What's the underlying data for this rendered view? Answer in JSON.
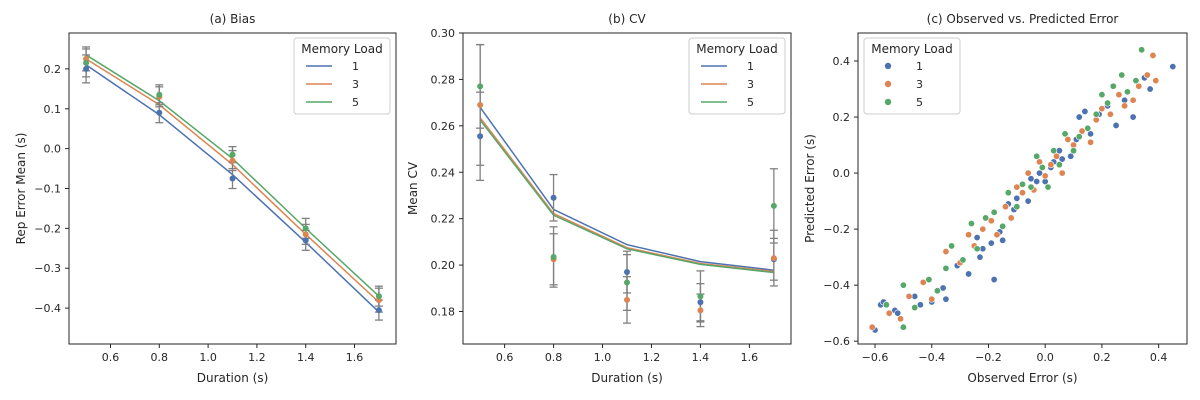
{
  "chart_data": [
    {
      "type": "line",
      "title": "(a) Bias",
      "xlabel": "Duration (s)",
      "ylabel": "Rep Error Mean (s)",
      "xlim": [
        0.43,
        1.77
      ],
      "ylim": [
        -0.49,
        0.29
      ],
      "xticks": [
        0.6,
        0.8,
        1.0,
        1.2,
        1.4,
        1.6
      ],
      "xtick_labels": [
        "0.6",
        "0.8",
        "1.0",
        "1.2",
        "1.4",
        "1.6"
      ],
      "yticks": [
        -0.4,
        -0.3,
        -0.2,
        -0.1,
        0.0,
        0.1,
        0.2
      ],
      "ytick_labels": [
        "−0.4",
        "−0.3",
        "−0.2",
        "−0.1",
        "0.0",
        "0.1",
        "0.2"
      ],
      "x": [
        0.5,
        0.8,
        1.1,
        1.4,
        1.7
      ],
      "legend": {
        "title": "Memory Load",
        "position": "top-right",
        "kind": "line"
      },
      "series": [
        {
          "name": "1",
          "color": "#4c72b0",
          "fit": [
            0.21,
            0.085,
            -0.065,
            -0.235,
            -0.41
          ],
          "points": [
            0.2,
            0.09,
            -0.075,
            -0.23,
            -0.405
          ],
          "err": [
            0.035,
            0.025,
            0.025,
            0.025,
            0.025
          ]
        },
        {
          "name": "3",
          "color": "#dd8452",
          "fit": [
            0.225,
            0.11,
            -0.04,
            -0.215,
            -0.385
          ],
          "points": [
            0.225,
            0.13,
            -0.03,
            -0.215,
            -0.38
          ],
          "err": [
            0.03,
            0.025,
            0.025,
            0.025,
            0.03
          ]
        },
        {
          "name": "5",
          "color": "#55a868",
          "fit": [
            0.235,
            0.12,
            -0.025,
            -0.2,
            -0.37
          ],
          "points": [
            0.215,
            0.135,
            -0.015,
            -0.2,
            -0.37
          ],
          "err": [
            0.035,
            0.025,
            0.02,
            0.025,
            0.025
          ]
        }
      ]
    },
    {
      "type": "line",
      "title": "(b) CV",
      "xlabel": "Duration (s)",
      "ylabel": "Mean CV",
      "xlim": [
        0.43,
        1.77
      ],
      "ylim": [
        0.166,
        0.3
      ],
      "xticks": [
        0.6,
        0.8,
        1.0,
        1.2,
        1.4,
        1.6
      ],
      "xtick_labels": [
        "0.6",
        "0.8",
        "1.0",
        "1.2",
        "1.4",
        "1.6"
      ],
      "yticks": [
        0.18,
        0.2,
        0.22,
        0.24,
        0.26,
        0.28,
        0.3
      ],
      "ytick_labels": [
        "0.18",
        "0.20",
        "0.22",
        "0.24",
        "0.26",
        "0.28",
        "0.30"
      ],
      "x": [
        0.5,
        0.8,
        1.1,
        1.4,
        1.7
      ],
      "legend": {
        "title": "Memory Load",
        "position": "top-right",
        "kind": "line"
      },
      "series": [
        {
          "name": "1",
          "color": "#4c72b0",
          "fit": [
            0.268,
            0.224,
            0.2088,
            0.2015,
            0.1978
          ],
          "points": [
            0.2555,
            0.229,
            0.197,
            0.184,
            0.2025
          ],
          "err": [
            0.019,
            0.01,
            0.009,
            0.008,
            0.009
          ]
        },
        {
          "name": "3",
          "color": "#dd8452",
          "fit": [
            0.2635,
            0.2222,
            0.2075,
            0.2007,
            0.1972
          ],
          "points": [
            0.269,
            0.2025,
            0.185,
            0.1805,
            0.203
          ],
          "err": [
            0.026,
            0.011,
            0.01,
            0.007,
            0.012
          ]
        },
        {
          "name": "5",
          "color": "#55a868",
          "fit": [
            0.2625,
            0.2215,
            0.207,
            0.2003,
            0.1968
          ],
          "points": [
            0.277,
            0.2035,
            0.1925,
            0.1865,
            0.2255
          ],
          "err": [
            0.018,
            0.013,
            0.012,
            0.011,
            0.016
          ]
        }
      ]
    },
    {
      "type": "scatter",
      "title": "(c) Observed vs. Predicted Error",
      "xlabel": "Observed Error (s)",
      "ylabel": "Predicted Error (s)",
      "xlim": [
        -0.66,
        0.5
      ],
      "ylim": [
        -0.61,
        0.5
      ],
      "xticks": [
        -0.6,
        -0.4,
        -0.2,
        0.0,
        0.2,
        0.4
      ],
      "xtick_labels": [
        "−0.6",
        "−0.4",
        "−0.2",
        "0.0",
        "0.2",
        "0.4"
      ],
      "yticks": [
        -0.6,
        -0.4,
        -0.2,
        0.0,
        0.2,
        0.4
      ],
      "ytick_labels": [
        "−0.6",
        "−0.4",
        "−0.2",
        "0.0",
        "0.2",
        "0.4"
      ],
      "legend": {
        "title": "Memory Load",
        "position": "top-left",
        "kind": "marker"
      },
      "series": [
        {
          "name": "1",
          "color": "#4c72b0",
          "points": [
            [
              -0.6,
              -0.56
            ],
            [
              -0.58,
              -0.47
            ],
            [
              -0.57,
              -0.46
            ],
            [
              -0.53,
              -0.49
            ],
            [
              -0.52,
              -0.5
            ],
            [
              -0.46,
              -0.44
            ],
            [
              -0.44,
              -0.47
            ],
            [
              -0.4,
              -0.46
            ],
            [
              -0.36,
              -0.41
            ],
            [
              -0.35,
              -0.45
            ],
            [
              -0.31,
              -0.33
            ],
            [
              -0.27,
              -0.36
            ],
            [
              -0.24,
              -0.23
            ],
            [
              -0.23,
              -0.3
            ],
            [
              -0.22,
              -0.27
            ],
            [
              -0.19,
              -0.25
            ],
            [
              -0.18,
              -0.38
            ],
            [
              -0.16,
              -0.21
            ],
            [
              -0.15,
              -0.24
            ],
            [
              -0.13,
              -0.11
            ],
            [
              -0.11,
              -0.13
            ],
            [
              -0.1,
              -0.09
            ],
            [
              -0.08,
              -0.07
            ],
            [
              -0.06,
              -0.1
            ],
            [
              -0.05,
              -0.02
            ],
            [
              -0.03,
              -0.03
            ],
            [
              -0.02,
              0.0
            ],
            [
              0.0,
              -0.03
            ],
            [
              0.02,
              0.02
            ],
            [
              0.03,
              0.04
            ],
            [
              0.05,
              0.08
            ],
            [
              0.06,
              0.05
            ],
            [
              0.09,
              0.06
            ],
            [
              0.11,
              0.12
            ],
            [
              0.12,
              0.2
            ],
            [
              0.14,
              0.22
            ],
            [
              0.16,
              0.14
            ],
            [
              0.19,
              0.21
            ],
            [
              0.22,
              0.24
            ],
            [
              0.25,
              0.17
            ],
            [
              0.28,
              0.26
            ],
            [
              0.31,
              0.2
            ],
            [
              0.35,
              0.34
            ],
            [
              0.37,
              0.3
            ],
            [
              0.45,
              0.38
            ]
          ]
        },
        {
          "name": "3",
          "color": "#dd8452",
          "points": [
            [
              -0.61,
              -0.55
            ],
            [
              -0.55,
              -0.5
            ],
            [
              -0.51,
              -0.52
            ],
            [
              -0.48,
              -0.44
            ],
            [
              -0.43,
              -0.39
            ],
            [
              -0.4,
              -0.45
            ],
            [
              -0.35,
              -0.28
            ],
            [
              -0.3,
              -0.32
            ],
            [
              -0.27,
              -0.22
            ],
            [
              -0.25,
              -0.26
            ],
            [
              -0.22,
              -0.2
            ],
            [
              -0.19,
              -0.17
            ],
            [
              -0.17,
              -0.22
            ],
            [
              -0.14,
              -0.12
            ],
            [
              -0.12,
              -0.16
            ],
            [
              -0.1,
              -0.05
            ],
            [
              -0.08,
              -0.07
            ],
            [
              -0.06,
              0.0
            ],
            [
              -0.04,
              -0.06
            ],
            [
              -0.02,
              0.04
            ],
            [
              0.0,
              -0.01
            ],
            [
              0.02,
              0.03
            ],
            [
              0.04,
              0.06
            ],
            [
              0.06,
              0.0
            ],
            [
              0.08,
              0.12
            ],
            [
              0.1,
              0.1
            ],
            [
              0.13,
              0.15
            ],
            [
              0.16,
              0.11
            ],
            [
              0.18,
              0.19
            ],
            [
              0.2,
              0.23
            ],
            [
              0.23,
              0.21
            ],
            [
              0.26,
              0.28
            ],
            [
              0.28,
              0.24
            ],
            [
              0.31,
              0.26
            ],
            [
              0.33,
              0.31
            ],
            [
              0.36,
              0.35
            ],
            [
              0.39,
              0.33
            ],
            [
              0.38,
              0.42
            ]
          ]
        },
        {
          "name": "5",
          "color": "#55a868",
          "points": [
            [
              -0.56,
              -0.47
            ],
            [
              -0.5,
              -0.55
            ],
            [
              -0.5,
              -0.4
            ],
            [
              -0.46,
              -0.48
            ],
            [
              -0.41,
              -0.38
            ],
            [
              -0.38,
              -0.42
            ],
            [
              -0.35,
              -0.34
            ],
            [
              -0.33,
              -0.26
            ],
            [
              -0.29,
              -0.31
            ],
            [
              -0.26,
              -0.18
            ],
            [
              -0.24,
              -0.27
            ],
            [
              -0.21,
              -0.16
            ],
            [
              -0.18,
              -0.14
            ],
            [
              -0.15,
              -0.19
            ],
            [
              -0.13,
              -0.07
            ],
            [
              -0.1,
              -0.12
            ],
            [
              -0.08,
              -0.04
            ],
            [
              -0.05,
              -0.05
            ],
            [
              -0.03,
              0.06
            ],
            [
              -0.01,
              0.02
            ],
            [
              0.01,
              -0.05
            ],
            [
              0.03,
              0.08
            ],
            [
              0.05,
              0.03
            ],
            [
              0.07,
              0.14
            ],
            [
              0.1,
              0.08
            ],
            [
              0.12,
              0.13
            ],
            [
              0.15,
              0.16
            ],
            [
              0.18,
              0.21
            ],
            [
              0.2,
              0.28
            ],
            [
              0.22,
              0.25
            ],
            [
              0.24,
              0.31
            ],
            [
              0.27,
              0.35
            ],
            [
              0.29,
              0.29
            ],
            [
              0.32,
              0.33
            ],
            [
              0.34,
              0.44
            ]
          ]
        }
      ]
    }
  ]
}
